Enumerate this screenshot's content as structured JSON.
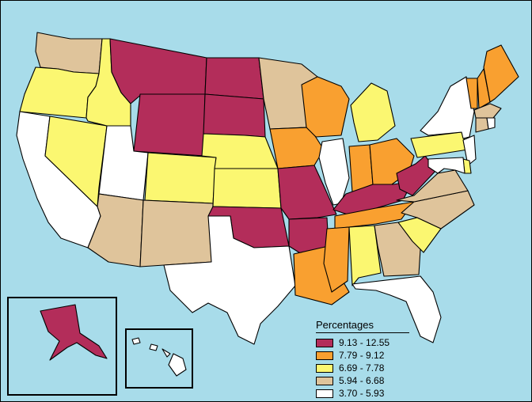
{
  "legend": {
    "title": "Percentages",
    "classes": [
      {
        "label": "9.13 - 12.55",
        "color": "#b32d5a"
      },
      {
        "label": "7.79 - 9.12",
        "color": "#f9a030"
      },
      {
        "label": "6.69 - 7.78",
        "color": "#fbf771"
      },
      {
        "label": "5.94 - 6.68",
        "color": "#dfc49b"
      },
      {
        "label": "3.70 - 5.93",
        "color": "#ffffff"
      }
    ]
  },
  "map_data": {
    "background_color": "#a8dcea",
    "state_classes": {
      "WA": 3,
      "OR": 2,
      "CA": 4,
      "NV": 2,
      "ID": 2,
      "MT": 0,
      "WY": 0,
      "UT": 4,
      "AZ": 3,
      "CO": 2,
      "NM": 3,
      "ND": 0,
      "SD": 0,
      "NE": 2,
      "KS": 2,
      "OK": 0,
      "TX": 4,
      "MN": 3,
      "IA": 1,
      "MO": 0,
      "AR": 0,
      "LA": 1,
      "WI": 1,
      "IL": 4,
      "MI": 2,
      "IN": 1,
      "OH": 1,
      "KY": 0,
      "TN": 1,
      "MS": 1,
      "AL": 2,
      "GA": 3,
      "FL": 4,
      "SC": 2,
      "NC": 3,
      "VA": 3,
      "WV": 0,
      "PA": 2,
      "NY": 4,
      "VT": 1,
      "NH": 1,
      "ME": 1,
      "MA": 3,
      "CT": 3,
      "RI": 4,
      "NJ": 4,
      "DE": 2,
      "MD": 4,
      "AK": 0,
      "HI": 4
    }
  }
}
